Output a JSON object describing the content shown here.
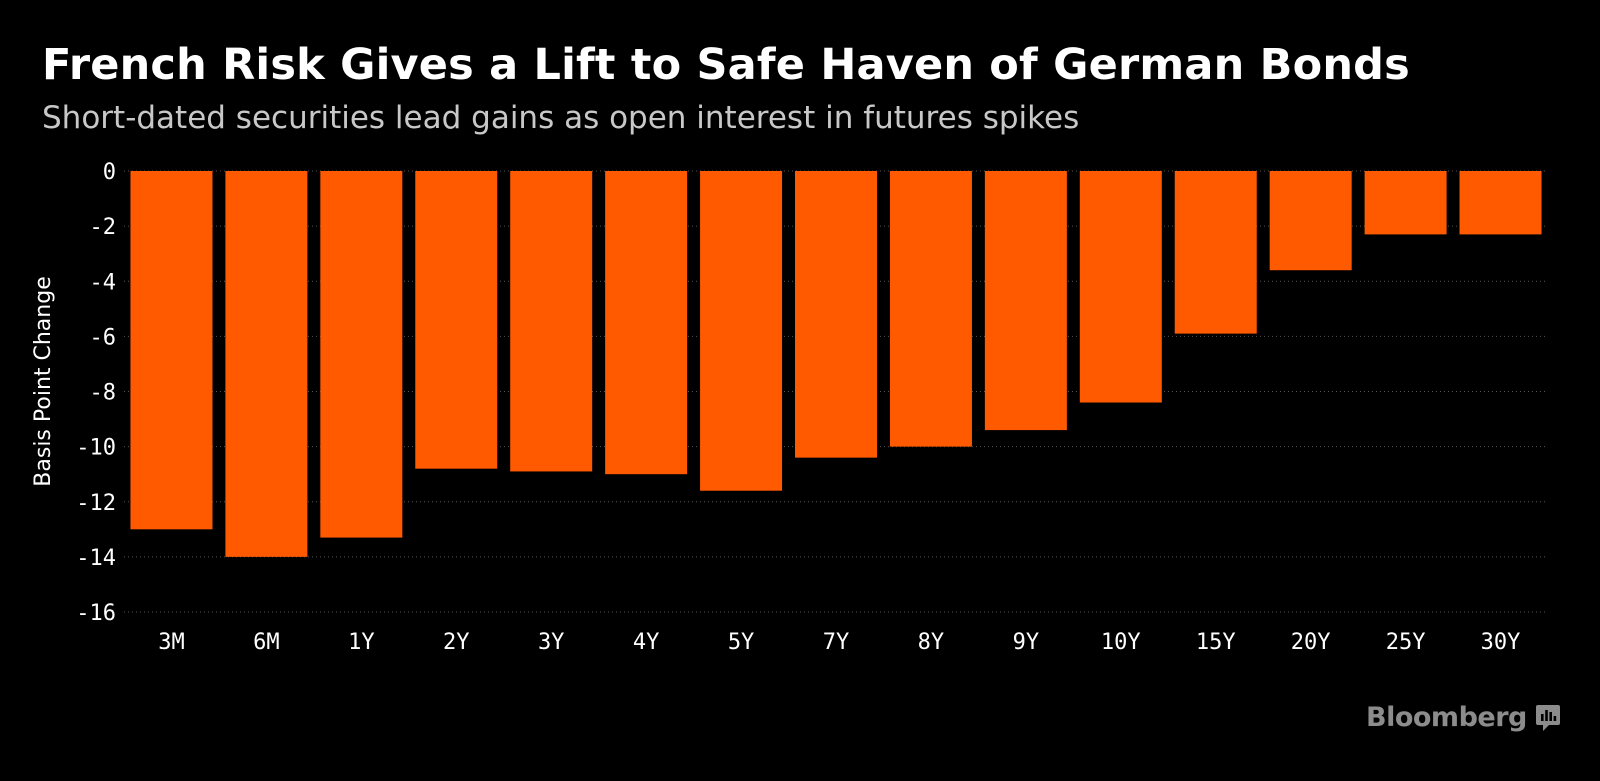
{
  "title": "French Risk Gives a Lift to Safe Haven of German Bonds",
  "subtitle": "Short-dated securities lead gains as open interest in futures spikes",
  "brand": {
    "name": "Bloomberg",
    "icon": "bloomberg-terminal-icon"
  },
  "colors": {
    "background": "#000000",
    "bar": "#ff5a00",
    "grid": "#555555",
    "text": "#ffffff",
    "subtitle": "#c8c8c8",
    "brand": "#8c8c8c"
  },
  "chart_data": {
    "type": "bar",
    "title": "French Risk Gives a Lift to Safe Haven of German Bonds",
    "subtitle": "Short-dated securities lead gains as open interest in futures spikes",
    "xlabel": "",
    "ylabel": "Basis Point Change",
    "categories": [
      "3M",
      "6M",
      "1Y",
      "2Y",
      "3Y",
      "4Y",
      "5Y",
      "7Y",
      "8Y",
      "9Y",
      "10Y",
      "15Y",
      "20Y",
      "25Y",
      "30Y"
    ],
    "values": [
      -13.0,
      -14.0,
      -13.3,
      -10.8,
      -10.9,
      -11.0,
      -11.6,
      -10.4,
      -10.0,
      -9.4,
      -8.4,
      -5.9,
      -3.6,
      -2.3,
      -2.3
    ],
    "ylim": [
      -16,
      0
    ],
    "yticks": [
      0,
      -2,
      -4,
      -6,
      -8,
      -10,
      -12,
      -14,
      -16
    ],
    "grid": true,
    "legend": "none"
  }
}
